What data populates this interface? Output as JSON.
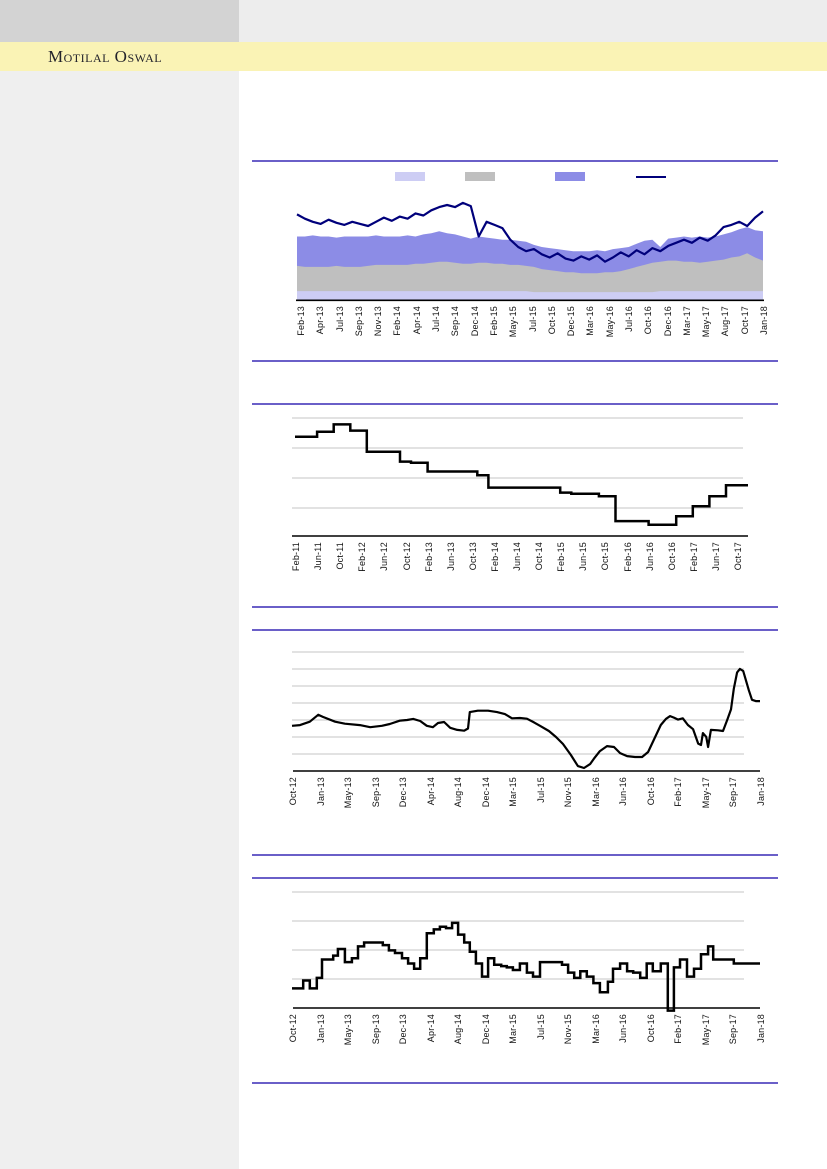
{
  "header": {
    "brand": "Motilal Oswal"
  },
  "colors": {
    "topbar_left": "#D3D3D3",
    "topbar_right": "#EDEDED",
    "brand_band": "#FAF3B5",
    "sidebar": "#EFEFEF",
    "separator": "#6A5FC8",
    "gridline": "#C4C4C4",
    "axis": "#000000",
    "chart_line": "#000000",
    "band_lavender": "#CDCDF4",
    "band_gray": "#BFBFBF",
    "band_purple": "#8C8CE6",
    "line_navy": "#00007B"
  },
  "legend": {
    "labels_visible": false,
    "items": [
      {
        "swatch": "area",
        "color": "#CDCDF4"
      },
      {
        "swatch": "area",
        "color": "#BFBFBF"
      },
      {
        "swatch": "area",
        "color": "#8C8CE6"
      },
      {
        "swatch": "line",
        "color": "#00007B"
      }
    ]
  },
  "chart_data": [
    {
      "type": "area",
      "subtype": "stacked-area-with-line",
      "legend_position": "top",
      "grid": false,
      "x_labels": [
        "Feb-13",
        "Apr-13",
        "Jul-13",
        "Sep-13",
        "Nov-13",
        "Feb-14",
        "Apr-14",
        "Jul-14",
        "Sep-14",
        "Dec-14",
        "Feb-15",
        "May-15",
        "Jul-15",
        "Oct-15",
        "Dec-15",
        "Mar-16",
        "May-16",
        "Jul-16",
        "Oct-16",
        "Dec-16",
        "Mar-17",
        "May-17",
        "Aug-17",
        "Oct-17",
        "Jan-18"
      ],
      "ylim": [
        0,
        100
      ],
      "note_units": "values estimated as percent of plot height; no y-axis labels are rendered in source",
      "series": [
        {
          "name": "band-lavender",
          "type": "area",
          "color": "#CDCDF4",
          "values": [
            8,
            8,
            8,
            8,
            8,
            8,
            8,
            8,
            8,
            8,
            8,
            8,
            8,
            8,
            8,
            8,
            8,
            8,
            8,
            8,
            8,
            8,
            8,
            8,
            8,
            8,
            8,
            8,
            8,
            8,
            7,
            7,
            7,
            7,
            7,
            7,
            7,
            7,
            7,
            7,
            7,
            7,
            7,
            7,
            7,
            7,
            8,
            8,
            8,
            8,
            8,
            8,
            8,
            8,
            8,
            8,
            8,
            8,
            8,
            8
          ]
        },
        {
          "name": "band-gray",
          "type": "area",
          "color": "#BFBFBF",
          "values": [
            32,
            31,
            31,
            31,
            31,
            32,
            31,
            31,
            31,
            32,
            33,
            33,
            33,
            33,
            33,
            34,
            34,
            35,
            36,
            36,
            35,
            34,
            34,
            35,
            35,
            34,
            34,
            33,
            33,
            32,
            31,
            29,
            28,
            27,
            26,
            26,
            25,
            25,
            25,
            26,
            26,
            27,
            29,
            31,
            33,
            35,
            36,
            37,
            37,
            36,
            36,
            35,
            36,
            37,
            38,
            40,
            41,
            44,
            40,
            37
          ]
        },
        {
          "name": "band-purple",
          "type": "area",
          "color": "#8C8CE6",
          "values": [
            60,
            60,
            61,
            60,
            60,
            59,
            60,
            60,
            60,
            60,
            61,
            60,
            60,
            60,
            61,
            60,
            62,
            63,
            65,
            63,
            62,
            60,
            58,
            60,
            59,
            58,
            57,
            57,
            56,
            55,
            52,
            50,
            49,
            48,
            47,
            46,
            46,
            46,
            47,
            46,
            48,
            49,
            50,
            53,
            56,
            57,
            50,
            58,
            59,
            60,
            59,
            60,
            59,
            60,
            62,
            64,
            67,
            69,
            66,
            65
          ]
        },
        {
          "name": "line-navy",
          "type": "line",
          "color": "#00007B",
          "values": [
            81,
            77,
            74,
            72,
            76,
            73,
            71,
            74,
            72,
            70,
            74,
            78,
            75,
            79,
            77,
            82,
            80,
            85,
            88,
            90,
            88,
            92,
            89,
            60,
            74,
            71,
            68,
            57,
            50,
            46,
            48,
            43,
            40,
            44,
            39,
            37,
            41,
            38,
            42,
            36,
            40,
            45,
            41,
            47,
            43,
            49,
            46,
            51,
            54,
            57,
            54,
            59,
            56,
            61,
            69,
            71,
            74,
            70,
            78,
            84
          ]
        }
      ]
    },
    {
      "type": "line",
      "subtype": "step",
      "grid": true,
      "gridlines": 4,
      "x_labels": [
        "Feb-11",
        "Jun-11",
        "Oct-11",
        "Feb-12",
        "Jun-12",
        "Oct-12",
        "Feb-13",
        "Jun-13",
        "Oct-13",
        "Feb-14",
        "Jun-14",
        "Oct-14",
        "Feb-15",
        "Jun-15",
        "Oct-15",
        "Feb-16",
        "Jun-16",
        "Oct-16",
        "Feb-17",
        "Jun-17",
        "Oct-17"
      ],
      "ylim": [
        0,
        100
      ],
      "note_units": "step level as percent of plot height; months counted from Feb-11",
      "steps_month_value": [
        [
          0,
          80
        ],
        [
          4,
          84
        ],
        [
          7,
          90
        ],
        [
          10,
          85
        ],
        [
          13,
          68
        ],
        [
          19,
          60
        ],
        [
          21,
          59
        ],
        [
          24,
          52
        ],
        [
          33,
          49
        ],
        [
          35,
          39
        ],
        [
          48,
          35
        ],
        [
          50,
          34
        ],
        [
          55,
          32
        ],
        [
          58,
          12
        ],
        [
          64,
          9
        ],
        [
          69,
          16
        ],
        [
          72,
          24
        ],
        [
          75,
          32
        ],
        [
          78,
          41
        ]
      ],
      "end_month": 82
    },
    {
      "type": "line",
      "grid": true,
      "gridlines": 7,
      "x_labels": [
        "Oct-12",
        "Jan-13",
        "May-13",
        "Sep-13",
        "Dec-13",
        "Apr-14",
        "Aug-14",
        "Dec-14",
        "Mar-15",
        "Jul-15",
        "Nov-15",
        "Mar-16",
        "Jun-16",
        "Oct-16",
        "Feb-17",
        "May-17",
        "Sep-17",
        "Jan-18"
      ],
      "ylim": [
        0,
        100
      ],
      "note_units": "x as percent of plot width, y as percent of plot height",
      "points": [
        [
          0,
          33
        ],
        [
          1.7,
          33.5
        ],
        [
          3.8,
          36
        ],
        [
          5.6,
          41
        ],
        [
          6.6,
          39.5
        ],
        [
          9.2,
          36
        ],
        [
          11.3,
          34.5
        ],
        [
          14.5,
          33.5
        ],
        [
          16.7,
          32
        ],
        [
          19.2,
          33
        ],
        [
          20.9,
          34.3
        ],
        [
          23.1,
          36.8
        ],
        [
          24.6,
          37.2
        ],
        [
          25.9,
          38
        ],
        [
          27.4,
          36.5
        ],
        [
          28.8,
          33
        ],
        [
          30.1,
          32
        ],
        [
          31.2,
          35
        ],
        [
          32.5,
          35.8
        ],
        [
          33.8,
          31.5
        ],
        [
          35.3,
          30
        ],
        [
          36.8,
          29.4
        ],
        [
          37.6,
          31
        ],
        [
          38,
          43
        ],
        [
          39.7,
          44
        ],
        [
          41.9,
          44
        ],
        [
          43.8,
          43
        ],
        [
          45.5,
          41.5
        ],
        [
          47,
          38.5
        ],
        [
          48.7,
          38.7
        ],
        [
          50.2,
          38.2
        ],
        [
          51.7,
          35.5
        ],
        [
          53,
          33
        ],
        [
          54.9,
          29.2
        ],
        [
          56.4,
          24.8
        ],
        [
          57.9,
          19.7
        ],
        [
          59.6,
          11.7
        ],
        [
          61.1,
          3.6
        ],
        [
          62.4,
          2.2
        ],
        [
          63.7,
          5
        ],
        [
          64.5,
          9
        ],
        [
          65.8,
          14.5
        ],
        [
          67.3,
          18.2
        ],
        [
          68.8,
          17.5
        ],
        [
          70.1,
          13.1
        ],
        [
          71.6,
          10.9
        ],
        [
          73.3,
          10.2
        ],
        [
          74.8,
          10.2
        ],
        [
          76.1,
          13.9
        ],
        [
          77.8,
          26.3
        ],
        [
          78.8,
          33.6
        ],
        [
          79.9,
          38
        ],
        [
          80.8,
          40.1
        ],
        [
          81.6,
          39
        ],
        [
          82.5,
          37.5
        ],
        [
          83.5,
          38.5
        ],
        [
          84.6,
          33.6
        ],
        [
          85.7,
          30.5
        ],
        [
          86.8,
          20
        ],
        [
          87.4,
          19
        ],
        [
          87.8,
          27.7
        ],
        [
          88.5,
          25
        ],
        [
          88.9,
          17.5
        ],
        [
          89.5,
          30
        ],
        [
          91,
          29.7
        ],
        [
          92.1,
          29.2
        ],
        [
          93,
          37.2
        ],
        [
          93.8,
          45
        ],
        [
          94.4,
          60
        ],
        [
          95.1,
          72
        ],
        [
          95.7,
          74.5
        ],
        [
          96.4,
          73
        ],
        [
          97,
          66
        ],
        [
          97.6,
          59
        ],
        [
          98.3,
          52
        ],
        [
          99.1,
          51
        ],
        [
          100,
          51
        ]
      ]
    },
    {
      "type": "line",
      "subtype": "step",
      "grid": true,
      "gridlines": 4,
      "x_labels": [
        "Oct-12",
        "Jan-13",
        "May-13",
        "Sep-13",
        "Dec-13",
        "Apr-14",
        "Aug-14",
        "Dec-14",
        "Mar-15",
        "Jul-15",
        "Nov-15",
        "Mar-16",
        "Jun-16",
        "Oct-16",
        "Feb-17",
        "May-17",
        "Sep-17",
        "Jan-18"
      ],
      "ylim": [
        0,
        100
      ],
      "note_units": "x as percent of plot width, y as percent of plot height; dip below 0 crosses the axis near Feb-17",
      "steps_xf_value": [
        [
          0,
          15
        ],
        [
          2.4,
          21
        ],
        [
          3.8,
          15
        ],
        [
          5.3,
          23
        ],
        [
          6.4,
          37
        ],
        [
          8.8,
          40
        ],
        [
          9.8,
          45
        ],
        [
          11.3,
          35
        ],
        [
          12.8,
          38
        ],
        [
          14.1,
          47
        ],
        [
          15.4,
          50
        ],
        [
          17.9,
          50
        ],
        [
          19.4,
          48
        ],
        [
          20.7,
          44
        ],
        [
          22,
          42
        ],
        [
          23.5,
          38
        ],
        [
          24.8,
          34
        ],
        [
          26.1,
          30
        ],
        [
          27.4,
          38
        ],
        [
          28.8,
          57
        ],
        [
          30.3,
          60
        ],
        [
          31.6,
          62
        ],
        [
          32.9,
          61
        ],
        [
          34.2,
          65
        ],
        [
          35.5,
          56
        ],
        [
          36.8,
          50
        ],
        [
          38,
          43
        ],
        [
          39.3,
          34
        ],
        [
          40.6,
          24
        ],
        [
          41.9,
          38
        ],
        [
          43.2,
          33
        ],
        [
          44.7,
          32
        ],
        [
          45.9,
          31
        ],
        [
          47.2,
          29
        ],
        [
          48.7,
          34
        ],
        [
          50.2,
          27
        ],
        [
          51.5,
          24
        ],
        [
          53,
          35
        ],
        [
          57.7,
          33
        ],
        [
          59,
          27
        ],
        [
          60.3,
          23
        ],
        [
          61.6,
          28
        ],
        [
          63,
          24
        ],
        [
          64.4,
          19
        ],
        [
          65.8,
          12
        ],
        [
          67.5,
          20
        ],
        [
          68.6,
          30
        ],
        [
          70.1,
          34
        ],
        [
          71.6,
          28
        ],
        [
          72.9,
          27
        ],
        [
          74.4,
          23
        ],
        [
          75.8,
          34
        ],
        [
          77.1,
          28
        ],
        [
          78.8,
          34
        ],
        [
          80.3,
          -2
        ],
        [
          81.6,
          31
        ],
        [
          82.9,
          37
        ],
        [
          84.4,
          24
        ],
        [
          85.9,
          30
        ],
        [
          87.4,
          41
        ],
        [
          88.9,
          47
        ],
        [
          90,
          37
        ],
        [
          94.4,
          34
        ]
      ],
      "end_xf": 100
    }
  ]
}
